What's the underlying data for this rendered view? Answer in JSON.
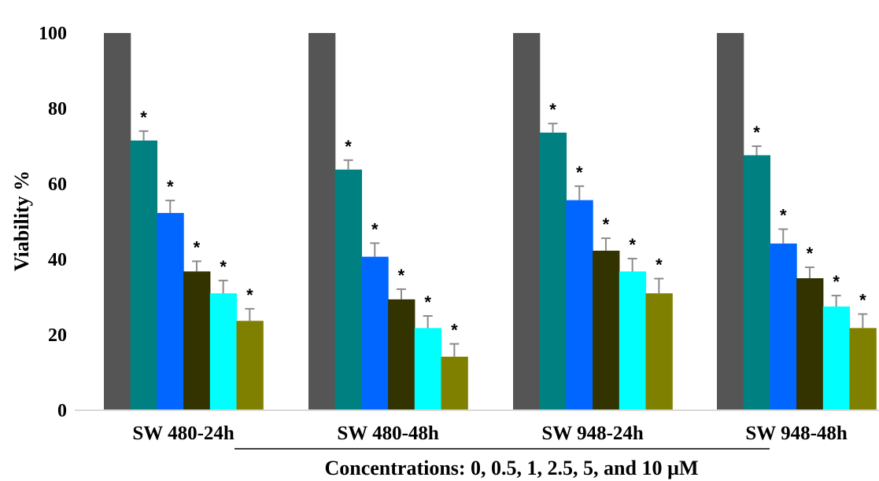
{
  "chart_data": {
    "type": "bar",
    "title": "",
    "xlabel": "Concentrations: 0, 0.5, 1, 2.5, 5, and 10 µM",
    "ylabel": "Viability %",
    "ylim": [
      0,
      100
    ],
    "yticks": [
      "0",
      "20",
      "40",
      "60",
      "80",
      "100"
    ],
    "grid": false,
    "legend": "none",
    "categories": [
      "SW 480-24h",
      "SW 480-48h",
      "SW 948-24h",
      "SW 948-48h"
    ],
    "series": [
      {
        "color": "#555555",
        "values": [
          100,
          100,
          100,
          100
        ],
        "errors": [
          0,
          0,
          0,
          0
        ],
        "significant": [
          false,
          false,
          false,
          false
        ]
      },
      {
        "color": "#008080",
        "values": [
          71.5,
          63.8,
          73.6,
          67.6
        ],
        "errors": [
          2.5,
          2.5,
          2.4,
          2.4
        ],
        "significant": [
          true,
          true,
          true,
          true
        ]
      },
      {
        "color": "#0066ff",
        "values": [
          52.3,
          40.7,
          55.7,
          44.2
        ],
        "errors": [
          3.3,
          3.6,
          3.7,
          3.8
        ],
        "significant": [
          true,
          true,
          true,
          true
        ]
      },
      {
        "color": "#333300",
        "values": [
          36.8,
          29.4,
          42.3,
          35.0
        ],
        "errors": [
          2.7,
          2.7,
          3.3,
          2.9
        ],
        "significant": [
          true,
          true,
          true,
          true
        ]
      },
      {
        "color": "#00ffff",
        "values": [
          31.0,
          21.8,
          36.8,
          27.5
        ],
        "errors": [
          3.4,
          3.2,
          3.4,
          2.9
        ],
        "significant": [
          true,
          true,
          true,
          true
        ]
      },
      {
        "color": "#808000",
        "values": [
          23.7,
          14.2,
          31.0,
          21.8
        ],
        "errors": [
          3.2,
          3.4,
          3.9,
          3.7
        ],
        "significant": [
          true,
          true,
          true,
          true
        ]
      }
    ],
    "significance_marker": "*"
  }
}
